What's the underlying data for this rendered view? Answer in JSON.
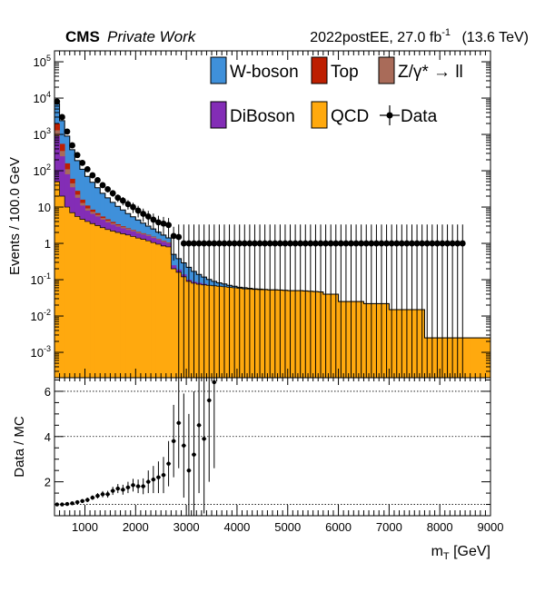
{
  "header": {
    "experiment": "CMS",
    "status": "Private Work",
    "lumi": "2022postEE, 27.0 fb",
    "lumi_exp": "-1",
    "energy": "(13.6 TeV)"
  },
  "chart_data": {
    "type": "stacked-histogram",
    "xlabel_main": "m",
    "xlabel_sub": "T",
    "xlabel_unit": "[GeV]",
    "ylabel": "Events / 100.0 GeV",
    "ratio_ylabel": "Data / MC",
    "x_range": [
      400,
      9000
    ],
    "y_range_log": [
      0.0002,
      200000
    ],
    "ratio_y_range": [
      0.5,
      6.6
    ],
    "x_ticks": [
      1000,
      2000,
      3000,
      4000,
      5000,
      6000,
      7000,
      8000,
      9000
    ],
    "x_tick_labels": [
      "1000",
      "2000",
      "3000",
      "4000",
      "5000",
      "6000",
      "7000",
      "8000",
      "9000"
    ],
    "y_ticks": [
      {
        "v": 0.001,
        "m": "10",
        "e": "-3"
      },
      {
        "v": 0.01,
        "m": "10",
        "e": "-2"
      },
      {
        "v": 0.1,
        "m": "10",
        "e": "-1"
      },
      {
        "v": 1,
        "m": "1",
        "e": ""
      },
      {
        "v": 10,
        "m": "10",
        "e": ""
      },
      {
        "v": 100,
        "m": "10",
        "e": "2"
      },
      {
        "v": 1000,
        "m": "10",
        "e": "3"
      },
      {
        "v": 10000,
        "m": "10",
        "e": "4"
      },
      {
        "v": 100000,
        "m": "10",
        "e": "5"
      }
    ],
    "ratio_ticks": [
      2,
      4,
      6
    ],
    "ratio_tick_labels": [
      "2",
      "4",
      "6"
    ],
    "ratio_ref_lines": [
      1,
      4,
      6
    ],
    "legend_position": "top-right",
    "series": [
      {
        "key": "qcd",
        "name": "QCD",
        "color": "#ffa90e"
      },
      {
        "key": "diboson",
        "name": "DiBoson",
        "color": "#832db6"
      },
      {
        "key": "zll",
        "name": "Z/γ* → ll",
        "color": "#a96b59"
      },
      {
        "key": "top",
        "name": "Top",
        "color": "#bd1f01"
      },
      {
        "key": "wboson",
        "name": "W-boson",
        "color": "#3f90da"
      }
    ],
    "data_label": "Data",
    "qcd": [
      [
        400,
        50
      ],
      [
        500,
        20
      ],
      [
        600,
        10
      ],
      [
        700,
        7
      ],
      [
        800,
        5.5
      ],
      [
        900,
        4.6
      ],
      [
        1000,
        4
      ],
      [
        1100,
        3.5
      ],
      [
        1200,
        3.1
      ],
      [
        1300,
        2.7
      ],
      [
        1400,
        2.4
      ],
      [
        1500,
        2.2
      ],
      [
        1600,
        2.0
      ],
      [
        1700,
        1.85
      ],
      [
        1800,
        1.7
      ],
      [
        1900,
        1.55
      ],
      [
        2000,
        1.4
      ],
      [
        2100,
        1.3
      ],
      [
        2200,
        1.18
      ],
      [
        2300,
        1.05
      ],
      [
        2400,
        0.95
      ],
      [
        2500,
        0.85
      ],
      [
        2600,
        0.8
      ],
      [
        2700,
        0.2
      ],
      [
        2800,
        0.16
      ],
      [
        2900,
        0.12
      ],
      [
        3000,
        0.09
      ],
      [
        3100,
        0.08
      ],
      [
        3200,
        0.075
      ],
      [
        3300,
        0.072
      ],
      [
        3400,
        0.07
      ],
      [
        3500,
        0.068
      ],
      [
        3600,
        0.066
      ],
      [
        3700,
        0.064
      ],
      [
        3800,
        0.062
      ],
      [
        3900,
        0.06
      ],
      [
        4000,
        0.058
      ],
      [
        4100,
        0.056
      ],
      [
        4200,
        0.055
      ],
      [
        4300,
        0.054
      ],
      [
        4400,
        0.053
      ],
      [
        4500,
        0.053
      ],
      [
        4600,
        0.052
      ],
      [
        4700,
        0.052
      ],
      [
        4800,
        0.052
      ],
      [
        4900,
        0.051
      ],
      [
        5000,
        0.05
      ],
      [
        5100,
        0.05
      ],
      [
        5200,
        0.05
      ],
      [
        5300,
        0.049
      ],
      [
        5400,
        0.048
      ],
      [
        5500,
        0.047
      ],
      [
        5600,
        0.046
      ],
      [
        5700,
        0.04
      ],
      [
        5800,
        0.04
      ],
      [
        5900,
        0.04
      ],
      [
        6000,
        0.025
      ],
      [
        6100,
        0.025
      ],
      [
        6200,
        0.025
      ],
      [
        6300,
        0.025
      ],
      [
        6400,
        0.025
      ],
      [
        6500,
        0.022
      ],
      [
        6600,
        0.022
      ],
      [
        6700,
        0.022
      ],
      [
        6800,
        0.022
      ],
      [
        6900,
        0.022
      ],
      [
        7000,
        0.015
      ],
      [
        7100,
        0.015
      ],
      [
        7200,
        0.015
      ],
      [
        7300,
        0.015
      ],
      [
        7400,
        0.015
      ],
      [
        7500,
        0.015
      ],
      [
        7600,
        0.015
      ],
      [
        7700,
        0.0025
      ],
      [
        7800,
        0.0025
      ],
      [
        7900,
        0.0025
      ],
      [
        8000,
        0.0025
      ],
      [
        8100,
        0.0025
      ],
      [
        8200,
        0.0025
      ],
      [
        8300,
        0.0025
      ],
      [
        8400,
        0.0025
      ],
      [
        8500,
        0.0025
      ],
      [
        8600,
        0.0025
      ],
      [
        8700,
        0.0025
      ],
      [
        8800,
        0.0025
      ],
      [
        8900,
        0.0025
      ]
    ],
    "diboson": [
      [
        400,
        900
      ],
      [
        500,
        250
      ],
      [
        600,
        80
      ],
      [
        700,
        35
      ],
      [
        800,
        18
      ],
      [
        900,
        11
      ],
      [
        1000,
        8
      ],
      [
        1100,
        6.5
      ],
      [
        1200,
        5.5
      ],
      [
        1300,
        4.5
      ],
      [
        1400,
        3.8
      ],
      [
        1500,
        3.3
      ],
      [
        1600,
        2.9
      ],
      [
        1700,
        2.6
      ],
      [
        1800,
        2.35
      ],
      [
        1900,
        2.15
      ],
      [
        2000,
        1.9
      ],
      [
        2100,
        1.75
      ],
      [
        2200,
        1.6
      ],
      [
        2300,
        1.4
      ],
      [
        2400,
        1.25
      ],
      [
        2500,
        1.1
      ],
      [
        2600,
        1.0
      ],
      [
        2700,
        0.25
      ],
      [
        2800,
        0.19
      ],
      [
        2900,
        0.14
      ],
      [
        3000,
        0.1
      ],
      [
        3100,
        0.088
      ],
      [
        3200,
        0.082
      ],
      [
        3300,
        0.077
      ]
    ],
    "zll": [
      [
        400,
        1300
      ],
      [
        500,
        350
      ],
      [
        600,
        110
      ],
      [
        700,
        45
      ],
      [
        800,
        22
      ],
      [
        900,
        13
      ],
      [
        1000,
        9.2
      ],
      [
        1100,
        7.4
      ],
      [
        1200,
        6.1
      ],
      [
        1300,
        5.0
      ],
      [
        1400,
        4.2
      ],
      [
        1500,
        3.6
      ],
      [
        1600,
        3.15
      ],
      [
        1700,
        2.8
      ],
      [
        1800,
        2.5
      ],
      [
        1900,
        2.3
      ],
      [
        2000,
        2.05
      ],
      [
        2100,
        1.85
      ],
      [
        2200,
        1.7
      ],
      [
        2300,
        1.5
      ],
      [
        2400,
        1.32
      ],
      [
        2500,
        1.16
      ],
      [
        2600,
        1.04
      ]
    ],
    "top": [
      [
        400,
        2000
      ],
      [
        500,
        550
      ],
      [
        600,
        160
      ],
      [
        700,
        60
      ],
      [
        800,
        28
      ],
      [
        900,
        16
      ],
      [
        1000,
        11
      ],
      [
        1100,
        8.5
      ],
      [
        1200,
        6.8
      ],
      [
        1300,
        5.5
      ],
      [
        1400,
        4.6
      ],
      [
        1500,
        3.9
      ],
      [
        1600,
        3.35
      ],
      [
        1700,
        2.95
      ],
      [
        1800,
        2.6
      ],
      [
        1900,
        2.35
      ],
      [
        2000,
        2.1
      ],
      [
        2100,
        1.9
      ],
      [
        2200,
        1.73
      ],
      [
        2300,
        1.53
      ],
      [
        2400,
        1.34
      ],
      [
        2500,
        1.18
      ],
      [
        2600,
        1.06
      ]
    ],
    "total": [
      [
        400,
        7000
      ],
      [
        500,
        2400
      ],
      [
        600,
        900
      ],
      [
        700,
        380
      ],
      [
        800,
        190
      ],
      [
        900,
        110
      ],
      [
        1000,
        70
      ],
      [
        1100,
        48
      ],
      [
        1200,
        34
      ],
      [
        1300,
        24
      ],
      [
        1400,
        18
      ],
      [
        1500,
        13.5
      ],
      [
        1600,
        10.5
      ],
      [
        1700,
        8.3
      ],
      [
        1800,
        6.6
      ],
      [
        1900,
        5.4
      ],
      [
        2000,
        4.4
      ],
      [
        2100,
        3.6
      ],
      [
        2200,
        3.0
      ],
      [
        2300,
        2.5
      ],
      [
        2400,
        2.05
      ],
      [
        2500,
        1.7
      ],
      [
        2600,
        1.42
      ],
      [
        2700,
        0.5
      ],
      [
        2800,
        0.38
      ],
      [
        2900,
        0.29
      ],
      [
        3000,
        0.22
      ],
      [
        3100,
        0.17
      ],
      [
        3200,
        0.14
      ],
      [
        3300,
        0.118
      ],
      [
        3400,
        0.102
      ],
      [
        3500,
        0.09
      ],
      [
        3600,
        0.082
      ],
      [
        3700,
        0.076
      ],
      [
        3800,
        0.07
      ],
      [
        3900,
        0.066
      ],
      [
        4000,
        0.062
      ],
      [
        4100,
        0.06
      ],
      [
        4200,
        0.058
      ],
      [
        4300,
        0.056
      ],
      [
        4400,
        0.055
      ],
      [
        4500,
        0.054
      ],
      [
        4600,
        0.053
      ],
      [
        4700,
        0.053
      ],
      [
        4800,
        0.052
      ],
      [
        4900,
        0.051
      ],
      [
        5000,
        0.05
      ],
      [
        5100,
        0.05
      ],
      [
        5200,
        0.05
      ],
      [
        5300,
        0.049
      ],
      [
        5400,
        0.048
      ],
      [
        5500,
        0.047
      ],
      [
        5600,
        0.046
      ],
      [
        5700,
        0.04
      ],
      [
        5800,
        0.04
      ],
      [
        5900,
        0.04
      ],
      [
        6000,
        0.025
      ],
      [
        6100,
        0.025
      ],
      [
        6200,
        0.025
      ],
      [
        6300,
        0.025
      ],
      [
        6400,
        0.025
      ],
      [
        6500,
        0.022
      ],
      [
        6600,
        0.022
      ],
      [
        6700,
        0.022
      ],
      [
        6800,
        0.022
      ],
      [
        6900,
        0.022
      ],
      [
        7000,
        0.015
      ],
      [
        7100,
        0.015
      ],
      [
        7200,
        0.015
      ],
      [
        7300,
        0.015
      ],
      [
        7400,
        0.015
      ],
      [
        7500,
        0.015
      ],
      [
        7600,
        0.015
      ],
      [
        7700,
        0.0025
      ],
      [
        7800,
        0.0025
      ],
      [
        7900,
        0.0025
      ],
      [
        8000,
        0.0025
      ],
      [
        8100,
        0.0025
      ],
      [
        8200,
        0.0025
      ],
      [
        8300,
        0.0025
      ],
      [
        8400,
        0.0025
      ],
      [
        8500,
        0.0025
      ],
      [
        8600,
        0.0025
      ],
      [
        8700,
        0.0025
      ],
      [
        8800,
        0.0025
      ],
      [
        8900,
        0.0025
      ]
    ],
    "data": [
      [
        450,
        8000
      ],
      [
        550,
        3000
      ],
      [
        650,
        1200
      ],
      [
        750,
        500
      ],
      [
        850,
        270
      ],
      [
        950,
        165
      ],
      [
        1050,
        110
      ],
      [
        1150,
        75
      ],
      [
        1250,
        55
      ],
      [
        1350,
        40
      ],
      [
        1450,
        31
      ],
      [
        1550,
        24
      ],
      [
        1650,
        18
      ],
      [
        1750,
        15
      ],
      [
        1850,
        12
      ],
      [
        1950,
        10
      ],
      [
        2050,
        8
      ],
      [
        2150,
        6.5
      ],
      [
        2250,
        5.5
      ],
      [
        2350,
        4.5
      ],
      [
        2450,
        3.8
      ],
      [
        2550,
        3.5
      ],
      [
        2650,
        3.2
      ],
      [
        2750,
        1.6
      ],
      [
        2850,
        1.5
      ],
      [
        2950,
        1
      ],
      [
        3050,
        1
      ],
      [
        3150,
        1
      ],
      [
        3250,
        1
      ],
      [
        3350,
        1
      ],
      [
        3450,
        1
      ],
      [
        3550,
        1
      ],
      [
        3650,
        1
      ],
      [
        3750,
        1
      ],
      [
        3850,
        1
      ],
      [
        3950,
        1
      ],
      [
        4050,
        1
      ],
      [
        4150,
        1
      ],
      [
        4250,
        1
      ],
      [
        4350,
        1
      ],
      [
        4450,
        1
      ],
      [
        4550,
        1
      ],
      [
        4650,
        1
      ],
      [
        4750,
        1
      ],
      [
        4850,
        1
      ],
      [
        4950,
        1
      ],
      [
        5050,
        1
      ],
      [
        5150,
        1
      ],
      [
        5250,
        1
      ],
      [
        5350,
        1
      ],
      [
        5450,
        1
      ],
      [
        5550,
        1
      ],
      [
        5650,
        1
      ],
      [
        5750,
        1
      ],
      [
        5850,
        1
      ],
      [
        5950,
        1
      ],
      [
        6050,
        1
      ],
      [
        6150,
        1
      ],
      [
        6250,
        1
      ],
      [
        6350,
        1
      ],
      [
        6450,
        1
      ],
      [
        6550,
        1
      ],
      [
        6650,
        1
      ],
      [
        6750,
        1
      ],
      [
        6850,
        1
      ],
      [
        6950,
        1
      ],
      [
        7050,
        1
      ],
      [
        7150,
        1
      ],
      [
        7250,
        1
      ],
      [
        7350,
        1
      ],
      [
        7450,
        1
      ],
      [
        7550,
        1
      ],
      [
        7650,
        1
      ],
      [
        7750,
        1
      ],
      [
        7850,
        1
      ],
      [
        7950,
        1
      ],
      [
        8050,
        1
      ],
      [
        8150,
        1
      ],
      [
        8250,
        1
      ],
      [
        8350,
        1
      ],
      [
        8450,
        1
      ]
    ],
    "ratio": [
      [
        450,
        1.0,
        0.05
      ],
      [
        550,
        1.0,
        0.05
      ],
      [
        650,
        1.02,
        0.06
      ],
      [
        750,
        1.05,
        0.06
      ],
      [
        850,
        1.1,
        0.07
      ],
      [
        950,
        1.15,
        0.08
      ],
      [
        1050,
        1.2,
        0.1
      ],
      [
        1150,
        1.3,
        0.1
      ],
      [
        1250,
        1.38,
        0.12
      ],
      [
        1350,
        1.45,
        0.14
      ],
      [
        1450,
        1.45,
        0.15
      ],
      [
        1550,
        1.6,
        0.18
      ],
      [
        1650,
        1.7,
        0.2
      ],
      [
        1750,
        1.65,
        0.22
      ],
      [
        1850,
        1.75,
        0.25
      ],
      [
        1950,
        1.85,
        0.28
      ],
      [
        2050,
        1.8,
        0.3
      ],
      [
        2150,
        1.8,
        0.35
      ],
      [
        2250,
        2.0,
        0.5
      ],
      [
        2350,
        2.1,
        0.6
      ],
      [
        2450,
        2.2,
        0.7
      ],
      [
        2550,
        2.3,
        0.8
      ],
      [
        2650,
        2.8,
        1.0
      ],
      [
        2750,
        3.8,
        1.6
      ],
      [
        2850,
        4.6,
        2.0
      ],
      [
        2950,
        3.6,
        2.3
      ],
      [
        3050,
        2.5,
        2.5
      ],
      [
        3150,
        3.2,
        2.8
      ],
      [
        3250,
        4.5,
        3.0
      ],
      [
        3350,
        3.9,
        3.3
      ],
      [
        3450,
        5.6,
        3.6
      ],
      [
        3550,
        6.4,
        3.8
      ]
    ]
  }
}
